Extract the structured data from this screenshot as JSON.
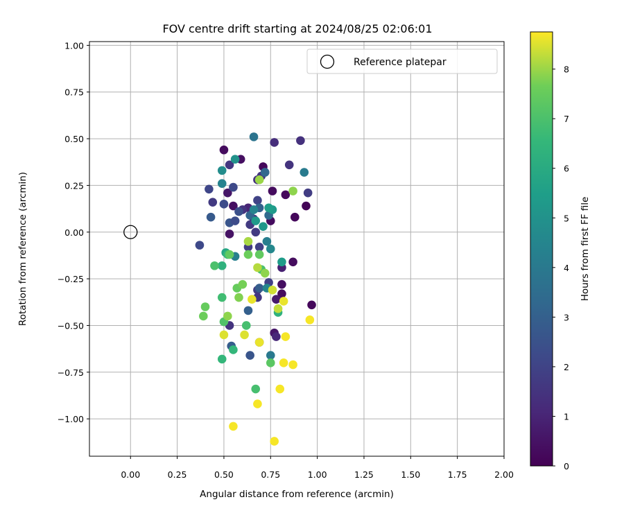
{
  "chart_data": {
    "type": "scatter",
    "title": "FOV centre drift starting at 2024/08/25 02:06:01",
    "xlabel": "Angular distance from reference (arcmin)",
    "ylabel": "Rotation from reference (arcmin)",
    "xlim": [
      -0.22,
      2.0
    ],
    "ylim": [
      -1.2,
      1.02
    ],
    "x_ticks": [
      0.0,
      0.25,
      0.5,
      0.75,
      1.0,
      1.25,
      1.5,
      1.75,
      2.0
    ],
    "x_tick_labels": [
      "0.00",
      "0.25",
      "0.50",
      "0.75",
      "1.00",
      "1.25",
      "1.50",
      "1.75",
      "2.00"
    ],
    "y_ticks": [
      1.0,
      0.75,
      0.5,
      0.25,
      0.0,
      -0.25,
      -0.5,
      -0.75,
      -1.0
    ],
    "y_tick_labels": [
      "1.00",
      "0.75",
      "0.50",
      "0.25",
      "0.00",
      "−0.25",
      "−0.50",
      "−0.75",
      "−1.00"
    ],
    "grid": true,
    "legend": {
      "position": "upper-right",
      "entries": [
        "Reference platepar"
      ]
    },
    "reference_point": {
      "x": 0.0,
      "y": 0.0,
      "label": "Reference platepar"
    },
    "colorbar": {
      "label": "Hours from first FF file",
      "colormap": "viridis",
      "range": [
        0,
        8.75
      ],
      "ticks": [
        0,
        1,
        2,
        3,
        4,
        5,
        6,
        7,
        8
      ],
      "tick_labels": [
        "0",
        "1",
        "2",
        "3",
        "4",
        "5",
        "6",
        "7",
        "8"
      ]
    },
    "points": [
      {
        "x": 0.5,
        "y": 0.44,
        "h": 0.3
      },
      {
        "x": 0.59,
        "y": 0.39,
        "h": 0.4
      },
      {
        "x": 0.71,
        "y": 0.35,
        "h": 0.2
      },
      {
        "x": 0.52,
        "y": 0.21,
        "h": 0.6
      },
      {
        "x": 0.76,
        "y": 0.22,
        "h": 0.3
      },
      {
        "x": 0.55,
        "y": 0.14,
        "h": 0.4
      },
      {
        "x": 0.83,
        "y": 0.2,
        "h": 0.2
      },
      {
        "x": 0.94,
        "y": 0.14,
        "h": 0.1
      },
      {
        "x": 0.88,
        "y": 0.08,
        "h": 0.2
      },
      {
        "x": 0.53,
        "y": -0.01,
        "h": 0.5
      },
      {
        "x": 0.75,
        "y": 0.06,
        "h": 0.3
      },
      {
        "x": 0.87,
        "y": -0.16,
        "h": 0.3
      },
      {
        "x": 0.81,
        "y": -0.19,
        "h": 0.9
      },
      {
        "x": 0.81,
        "y": -0.28,
        "h": 0.4
      },
      {
        "x": 0.81,
        "y": -0.33,
        "h": 0.3
      },
      {
        "x": 0.97,
        "y": -0.39,
        "h": 0.2
      },
      {
        "x": 0.78,
        "y": -0.36,
        "h": 0.7
      },
      {
        "x": 0.77,
        "y": -0.54,
        "h": 0.6
      },
      {
        "x": 0.78,
        "y": -0.56,
        "h": 1.1
      },
      {
        "x": 0.69,
        "y": -0.59,
        "h": 0.9
      },
      {
        "x": 0.77,
        "y": 0.48,
        "h": 1.3
      },
      {
        "x": 0.91,
        "y": 0.49,
        "h": 1.4
      },
      {
        "x": 0.85,
        "y": 0.36,
        "h": 1.5
      },
      {
        "x": 0.53,
        "y": 0.36,
        "h": 1.6
      },
      {
        "x": 0.44,
        "y": 0.16,
        "h": 1.7
      },
      {
        "x": 0.66,
        "y": 0.07,
        "h": 1.2
      },
      {
        "x": 0.63,
        "y": 0.13,
        "h": 1.0
      },
      {
        "x": 0.6,
        "y": 0.12,
        "h": 1.5
      },
      {
        "x": 0.68,
        "y": 0.28,
        "h": 1.4
      },
      {
        "x": 0.7,
        "y": 0.3,
        "h": 1.6
      },
      {
        "x": 0.95,
        "y": 0.21,
        "h": 1.8
      },
      {
        "x": 0.72,
        "y": 0.32,
        "h": 1.8
      },
      {
        "x": 0.64,
        "y": 0.04,
        "h": 1.7
      },
      {
        "x": 0.63,
        "y": -0.08,
        "h": 1.8
      },
      {
        "x": 0.69,
        "y": -0.08,
        "h": 1.9
      },
      {
        "x": 0.67,
        "y": 0.0,
        "h": 1.7
      },
      {
        "x": 0.74,
        "y": -0.27,
        "h": 1.9
      },
      {
        "x": 0.68,
        "y": -0.31,
        "h": 1.8
      },
      {
        "x": 0.53,
        "y": -0.5,
        "h": 1.5
      },
      {
        "x": 0.68,
        "y": -0.35,
        "h": 1.6
      },
      {
        "x": 0.42,
        "y": 0.23,
        "h": 2.1
      },
      {
        "x": 0.5,
        "y": 0.15,
        "h": 2.3
      },
      {
        "x": 0.55,
        "y": 0.24,
        "h": 2.2
      },
      {
        "x": 0.68,
        "y": 0.17,
        "h": 2.0
      },
      {
        "x": 0.58,
        "y": 0.11,
        "h": 2.4
      },
      {
        "x": 0.53,
        "y": 0.05,
        "h": 2.6
      },
      {
        "x": 0.56,
        "y": 0.06,
        "h": 2.3
      },
      {
        "x": 0.37,
        "y": -0.07,
        "h": 2.2
      },
      {
        "x": 0.43,
        "y": 0.08,
        "h": 2.8
      },
      {
        "x": 0.63,
        "y": -0.42,
        "h": 3.0
      },
      {
        "x": 0.54,
        "y": -0.61,
        "h": 2.9
      },
      {
        "x": 0.64,
        "y": -0.66,
        "h": 2.6
      },
      {
        "x": 0.69,
        "y": -0.3,
        "h": 2.9
      },
      {
        "x": 0.69,
        "y": 0.13,
        "h": 3.1
      },
      {
        "x": 0.64,
        "y": 0.09,
        "h": 3.2
      },
      {
        "x": 0.72,
        "y": 0.32,
        "h": 3.3
      },
      {
        "x": 0.74,
        "y": 0.09,
        "h": 3.4
      },
      {
        "x": 0.66,
        "y": 0.51,
        "h": 3.8
      },
      {
        "x": 0.93,
        "y": 0.32,
        "h": 4.1
      },
      {
        "x": 0.73,
        "y": -0.05,
        "h": 4.2
      },
      {
        "x": 0.49,
        "y": 0.26,
        "h": 4.4
      },
      {
        "x": 0.56,
        "y": -0.13,
        "h": 4.3
      },
      {
        "x": 0.75,
        "y": -0.09,
        "h": 4.6
      },
      {
        "x": 0.75,
        "y": -0.66,
        "h": 4.0
      },
      {
        "x": 0.73,
        "y": -0.3,
        "h": 4.5
      },
      {
        "x": 0.66,
        "y": 0.12,
        "h": 4.4
      },
      {
        "x": 0.56,
        "y": 0.39,
        "h": 5.0
      },
      {
        "x": 0.49,
        "y": 0.33,
        "h": 4.8
      },
      {
        "x": 0.71,
        "y": 0.03,
        "h": 5.2
      },
      {
        "x": 0.76,
        "y": 0.12,
        "h": 5.3
      },
      {
        "x": 0.74,
        "y": 0.13,
        "h": 5.5
      },
      {
        "x": 0.81,
        "y": -0.16,
        "h": 5.4
      },
      {
        "x": 0.67,
        "y": 0.06,
        "h": 5.3
      },
      {
        "x": 0.51,
        "y": -0.11,
        "h": 5.8
      },
      {
        "x": 0.79,
        "y": -0.43,
        "h": 6.3
      },
      {
        "x": 0.52,
        "y": -0.12,
        "h": 6.6
      },
      {
        "x": 0.49,
        "y": -0.18,
        "h": 6.3
      },
      {
        "x": 0.55,
        "y": -0.63,
        "h": 6.5
      },
      {
        "x": 0.49,
        "y": -0.68,
        "h": 6.5
      },
      {
        "x": 0.49,
        "y": -0.35,
        "h": 6.8
      },
      {
        "x": 0.62,
        "y": -0.5,
        "h": 6.9
      },
      {
        "x": 0.67,
        "y": -0.84,
        "h": 6.9
      },
      {
        "x": 0.45,
        "y": -0.18,
        "h": 7.0
      },
      {
        "x": 0.5,
        "y": -0.48,
        "h": 7.1
      },
      {
        "x": 0.7,
        "y": -0.2,
        "h": 7.0
      },
      {
        "x": 0.75,
        "y": -0.7,
        "h": 7.3
      },
      {
        "x": 0.53,
        "y": -0.12,
        "h": 7.4
      },
      {
        "x": 0.69,
        "y": -0.12,
        "h": 7.4
      },
      {
        "x": 0.57,
        "y": -0.3,
        "h": 7.5
      },
      {
        "x": 0.4,
        "y": -0.4,
        "h": 7.5
      },
      {
        "x": 0.63,
        "y": -0.12,
        "h": 7.6
      },
      {
        "x": 0.39,
        "y": -0.45,
        "h": 7.6
      },
      {
        "x": 0.6,
        "y": -0.28,
        "h": 7.7
      },
      {
        "x": 0.58,
        "y": -0.35,
        "h": 7.8
      },
      {
        "x": 0.72,
        "y": -0.22,
        "h": 7.9
      },
      {
        "x": 0.52,
        "y": -0.45,
        "h": 7.9
      },
      {
        "x": 0.87,
        "y": 0.22,
        "h": 7.9
      },
      {
        "x": 0.69,
        "y": 0.28,
        "h": 8.0
      },
      {
        "x": 0.63,
        "y": -0.05,
        "h": 8.1
      },
      {
        "x": 0.68,
        "y": -0.19,
        "h": 8.2
      },
      {
        "x": 0.79,
        "y": -0.41,
        "h": 8.3
      },
      {
        "x": 0.76,
        "y": -0.31,
        "h": 8.4
      },
      {
        "x": 0.5,
        "y": -0.55,
        "h": 8.5
      },
      {
        "x": 0.61,
        "y": -0.55,
        "h": 8.5
      },
      {
        "x": 0.65,
        "y": -0.36,
        "h": 8.6
      },
      {
        "x": 0.69,
        "y": -0.59,
        "h": 8.6
      },
      {
        "x": 0.82,
        "y": -0.37,
        "h": 8.6
      },
      {
        "x": 0.83,
        "y": -0.56,
        "h": 8.7
      },
      {
        "x": 0.82,
        "y": -0.7,
        "h": 8.7
      },
      {
        "x": 0.87,
        "y": -0.71,
        "h": 8.7
      },
      {
        "x": 0.96,
        "y": -0.47,
        "h": 8.7
      },
      {
        "x": 0.68,
        "y": -0.92,
        "h": 8.7
      },
      {
        "x": 0.8,
        "y": -0.84,
        "h": 8.7
      },
      {
        "x": 0.55,
        "y": -1.04,
        "h": 8.7
      },
      {
        "x": 0.77,
        "y": -1.12,
        "h": 8.7
      }
    ]
  }
}
